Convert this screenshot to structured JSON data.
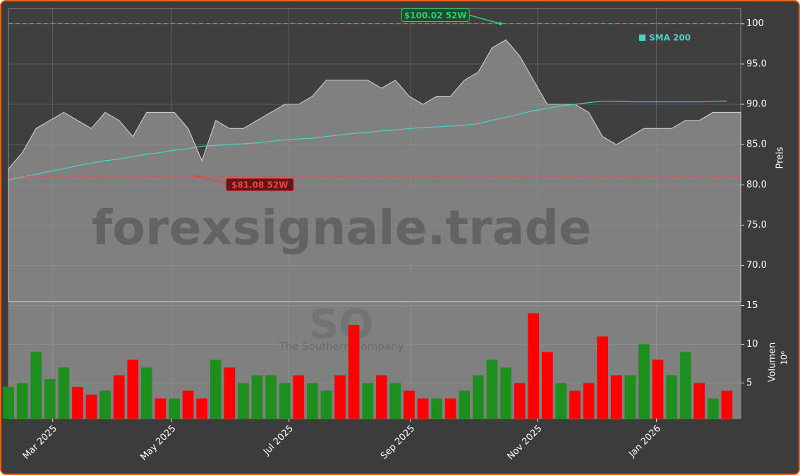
{
  "chart_data": {
    "type": "area",
    "watermark": "forexsignale.trade",
    "ticker": "SO",
    "company": "The Southern Company",
    "ylabel": "Preis",
    "y2label": "Volumen",
    "y2unit": "10⁶",
    "xlim": [
      0,
      53
    ],
    "xticks": [
      {
        "value": 3.2,
        "label": "Mar 2025"
      },
      {
        "value": 11.8,
        "label": "May 2025"
      },
      {
        "value": 20.3,
        "label": "Jul 2025"
      },
      {
        "value": 29.1,
        "label": "Sep 2025"
      },
      {
        "value": 38.3,
        "label": "Nov 2025"
      },
      {
        "value": 46.9,
        "label": "Jan 2026"
      }
    ],
    "ylim": [
      65.5,
      101.9
    ],
    "yticks": [
      {
        "value": 70,
        "label": "70.0"
      },
      {
        "value": 75,
        "label": "75.0"
      },
      {
        "value": 80,
        "label": "80.0"
      },
      {
        "value": 85,
        "label": "85.0"
      },
      {
        "value": 90,
        "label": "90.0"
      },
      {
        "value": 95,
        "label": "95.0"
      },
      {
        "value": 100,
        "label": "100"
      }
    ],
    "y2lim": [
      0.4,
      15.5
    ],
    "y2ticks": [
      5,
      10,
      15
    ],
    "grid": true,
    "close": {
      "color": "#808080",
      "values": [
        82,
        84,
        87,
        88,
        89,
        88,
        87,
        89,
        88,
        86,
        89,
        89,
        89,
        87,
        83,
        88,
        87,
        87,
        88,
        89,
        90,
        90,
        91,
        93,
        93,
        93,
        93,
        92,
        93,
        91,
        90,
        91,
        91,
        93,
        94,
        97,
        98,
        96,
        93,
        90,
        90,
        90,
        89,
        86,
        85,
        86,
        87,
        87,
        87,
        88,
        88,
        89,
        89
      ]
    },
    "sma": {
      "name": "SMA 200",
      "color": "#4fd0c8",
      "values": [
        80.6,
        81.0,
        81.3,
        81.7,
        82.0,
        82.4,
        82.7,
        83.0,
        83.2,
        83.5,
        83.8,
        84.0,
        84.3,
        84.5,
        84.8,
        84.9,
        85.0,
        85.1,
        85.2,
        85.4,
        85.6,
        85.7,
        85.8,
        86.0,
        86.2,
        86.4,
        86.5,
        86.7,
        86.8,
        87.0,
        87.1,
        87.2,
        87.3,
        87.4,
        87.6,
        88.0,
        88.4,
        88.8,
        89.2,
        89.5,
        89.8,
        90.0,
        90.2,
        90.4,
        90.4,
        90.3,
        90.3,
        90.3,
        90.3,
        90.3,
        90.3,
        90.4,
        90.4
      ]
    },
    "volume": {
      "values": [
        4.5,
        5,
        9,
        5.5,
        7,
        4.5,
        3.5,
        4,
        6,
        8,
        7,
        3,
        3,
        4,
        3,
        8,
        7,
        5,
        6,
        6,
        5,
        6,
        5,
        4,
        6,
        12.5,
        5,
        6,
        5,
        4,
        3,
        3,
        3,
        4,
        6,
        8,
        7,
        5,
        14,
        9,
        5,
        4,
        5,
        11,
        6,
        6,
        10,
        8,
        6,
        9,
        5,
        3,
        4
      ],
      "colors": [
        "#1e8f1e",
        "#1e8f1e",
        "#1e8f1e",
        "#1e8f1e",
        "#1e8f1e",
        "#ff0000",
        "#ff0000",
        "#1e8f1e",
        "#ff0000",
        "#ff0000",
        "#1e8f1e",
        "#ff0000",
        "#1e8f1e",
        "#ff0000",
        "#ff0000",
        "#1e8f1e",
        "#ff0000",
        "#1e8f1e",
        "#1e8f1e",
        "#1e8f1e",
        "#1e8f1e",
        "#ff0000",
        "#1e8f1e",
        "#1e8f1e",
        "#ff0000",
        "#ff0000",
        "#1e8f1e",
        "#ff0000",
        "#1e8f1e",
        "#ff0000",
        "#ff0000",
        "#1e8f1e",
        "#ff0000",
        "#1e8f1e",
        "#1e8f1e",
        "#1e8f1e",
        "#1e8f1e",
        "#ff0000",
        "#ff0000",
        "#ff0000",
        "#1e8f1e",
        "#ff0000",
        "#ff0000",
        "#ff0000",
        "#ff0000",
        "#1e8f1e",
        "#1e8f1e",
        "#ff0000",
        "#1e8f1e",
        "#1e8f1e",
        "#ff0000",
        "#1e8f1e",
        "#ff0000"
      ]
    },
    "annotations": [
      {
        "text": "$100.02 52W",
        "value": 100.02,
        "x": 35.6,
        "color": "#2ecc71"
      },
      {
        "text": "$81.08 52W",
        "value": 81.08,
        "x": 13.7,
        "color": "#ff3b3b"
      }
    ]
  }
}
